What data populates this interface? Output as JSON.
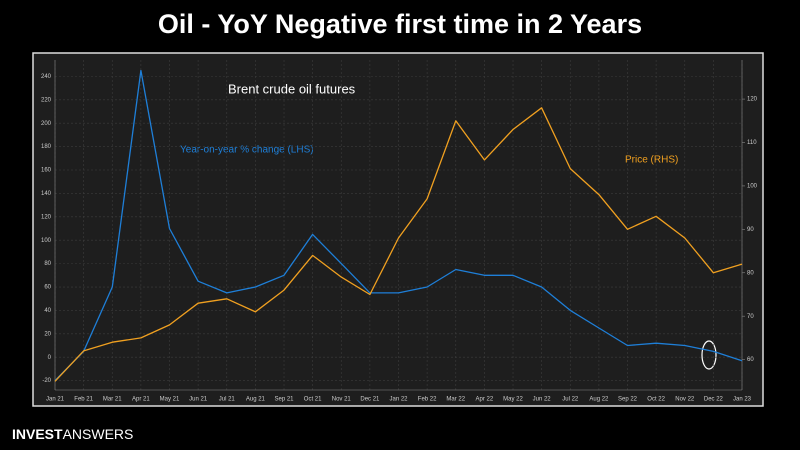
{
  "title": "Oil - YoY Negative first time in 2 Years",
  "brand": {
    "first": "INVEST",
    "second": "ANSWERS"
  },
  "chart_data": {
    "type": "line",
    "annotations": [
      "Brent crude oil futures"
    ],
    "categories": [
      "Jan 21",
      "Feb 21",
      "Mar 21",
      "Apr 21",
      "May 21",
      "Jun 21",
      "Jul 21",
      "Aug 21",
      "Sep 21",
      "Oct 21",
      "Nov 21",
      "Dec 21",
      "Jan 22",
      "Feb 22",
      "Mar 22",
      "Apr 22",
      "May 22",
      "Jun 22",
      "Jul 22",
      "Aug 22",
      "Sep 22",
      "Oct 22",
      "Nov 22",
      "Dec 22",
      "Jan 23"
    ],
    "series": [
      {
        "name": "Year-on-year % change (LHS)",
        "color": "#1e7fd8",
        "axis": "y",
        "values": [
          -20,
          5,
          60,
          245,
          110,
          65,
          55,
          60,
          70,
          105,
          80,
          55,
          55,
          60,
          75,
          70,
          70,
          60,
          40,
          25,
          10,
          12,
          10,
          5,
          -3
        ]
      },
      {
        "name": "Price (RHS)",
        "color": "#f0a020",
        "axis": "y2",
        "values": [
          55,
          62,
          64,
          65,
          68,
          73,
          74,
          71,
          76,
          84,
          79,
          75,
          88,
          97,
          115,
          106,
          113,
          118,
          104,
          98,
          90,
          93,
          88,
          80,
          82
        ]
      }
    ],
    "ylim": [
      -28,
      254
    ],
    "yticks": [
      -20,
      0,
      20,
      40,
      60,
      80,
      100,
      120,
      140,
      160,
      180,
      200,
      220,
      240
    ],
    "y2lim": [
      53,
      129
    ],
    "y2ticks": [
      60,
      70,
      80,
      90,
      100,
      110,
      120
    ],
    "grid": true
  }
}
